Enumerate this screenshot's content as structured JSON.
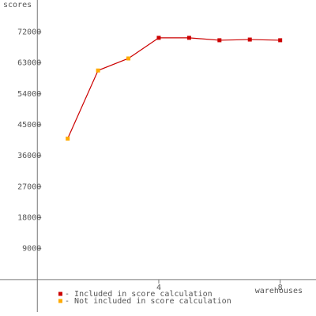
{
  "chart_data": {
    "type": "line",
    "y_label": "scores",
    "x_label": "warehouses",
    "x": [
      1,
      2,
      3,
      4,
      5,
      6,
      7,
      8
    ],
    "series": [
      {
        "name": "Included in score calculation",
        "color": "#cc0000",
        "values": [
          null,
          null,
          null,
          70300,
          70300,
          69600,
          69800,
          69600
        ]
      },
      {
        "name": "Not included in score calculation",
        "color": "#ffaa00",
        "values": [
          41000,
          60800,
          64300,
          null,
          null,
          null,
          null,
          null
        ]
      }
    ],
    "legend_prefix": "- ",
    "line_color": "#cc0000",
    "xlim": [
      -1.23,
      9.18
    ],
    "xticks": [
      4,
      8
    ],
    "ylim": [
      -10600,
      81300
    ],
    "yticks": [
      9000,
      18000,
      27000,
      36000,
      45000,
      54000,
      63000,
      72000
    ]
  }
}
